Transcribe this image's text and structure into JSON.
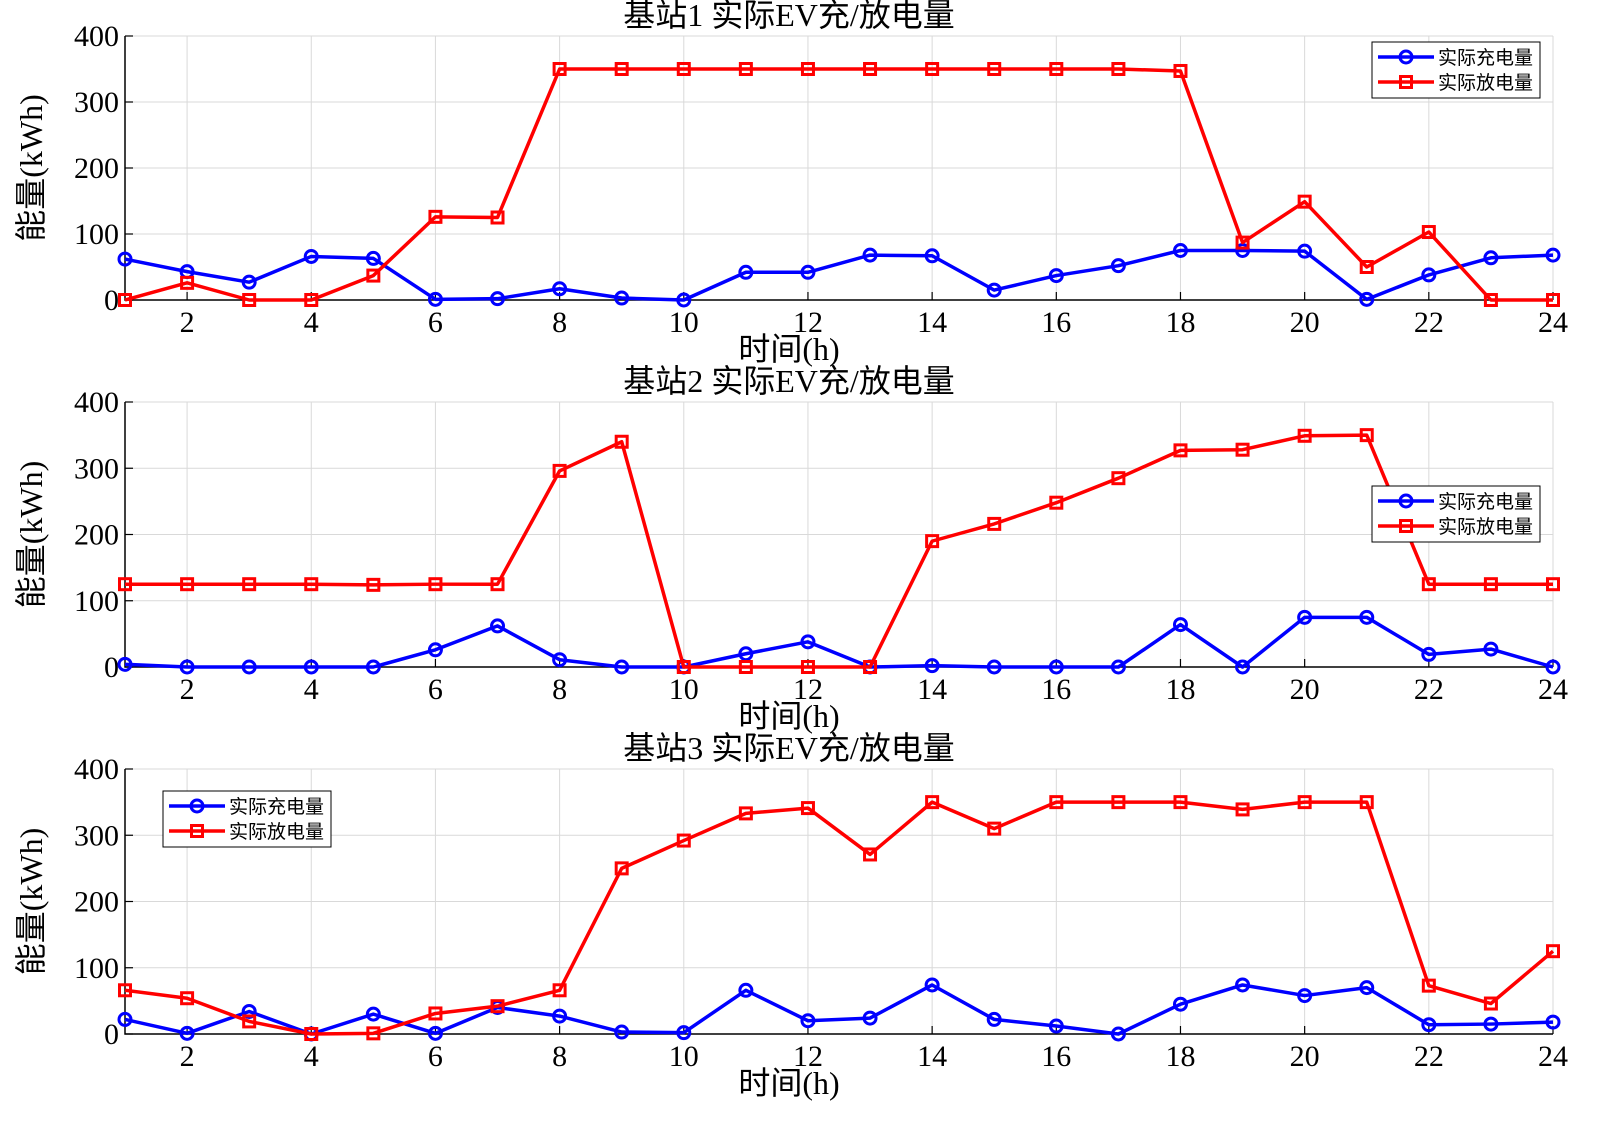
{
  "chart_data": [
    {
      "type": "line",
      "title": "基站1 实际EV充/放电量",
      "xlabel": "时间(h)",
      "ylabel": "能量(kWh)",
      "x": [
        1,
        2,
        3,
        4,
        5,
        6,
        7,
        8,
        9,
        10,
        11,
        12,
        13,
        14,
        15,
        16,
        17,
        18,
        19,
        20,
        21,
        22,
        23,
        24
      ],
      "xlim": [
        1,
        24
      ],
      "ylim": [
        0,
        400
      ],
      "xticks": [
        2,
        4,
        6,
        8,
        10,
        12,
        14,
        16,
        18,
        20,
        22,
        24
      ],
      "yticks": [
        0,
        100,
        200,
        300,
        400
      ],
      "grid": true,
      "legend_position": "top-right",
      "series": [
        {
          "name": "实际充电量",
          "color": "#0000ff",
          "marker": "circle",
          "values": [
            62,
            43,
            27,
            66,
            63,
            1,
            2,
            17,
            3,
            0,
            42,
            42,
            68,
            67,
            15,
            37,
            52,
            75,
            75,
            74,
            1,
            38,
            64,
            68
          ]
        },
        {
          "name": "实际放电量",
          "color": "#ff0000",
          "marker": "square",
          "values": [
            0,
            26,
            0,
            0,
            37,
            126,
            125,
            350,
            350,
            350,
            350,
            350,
            350,
            350,
            350,
            350,
            350,
            347,
            87,
            149,
            50,
            103,
            0,
            0
          ]
        }
      ]
    },
    {
      "type": "line",
      "title": "基站2 实际EV充/放电量",
      "xlabel": "时间(h)",
      "ylabel": "能量(kWh)",
      "x": [
        1,
        2,
        3,
        4,
        5,
        6,
        7,
        8,
        9,
        10,
        11,
        12,
        13,
        14,
        15,
        16,
        17,
        18,
        19,
        20,
        21,
        22,
        23,
        24
      ],
      "xlim": [
        1,
        24
      ],
      "ylim": [
        0,
        400
      ],
      "xticks": [
        2,
        4,
        6,
        8,
        10,
        12,
        14,
        16,
        18,
        20,
        22,
        24
      ],
      "yticks": [
        0,
        100,
        200,
        300,
        400
      ],
      "grid": true,
      "legend_position": "right",
      "series": [
        {
          "name": "实际充电量",
          "color": "#0000ff",
          "marker": "circle",
          "values": [
            4,
            0,
            0,
            0,
            0,
            26,
            62,
            11,
            0,
            0,
            20,
            38,
            0,
            2,
            0,
            0,
            0,
            64,
            0,
            75,
            75,
            19,
            27,
            0
          ]
        },
        {
          "name": "实际放电量",
          "color": "#ff0000",
          "marker": "square",
          "values": [
            125,
            125,
            125,
            125,
            124,
            125,
            125,
            296,
            340,
            0,
            0,
            0,
            0,
            190,
            216,
            248,
            285,
            327,
            328,
            349,
            350,
            125,
            125,
            125
          ]
        }
      ]
    },
    {
      "type": "line",
      "title": "基站3 实际EV充/放电量",
      "xlabel": "时间(h)",
      "ylabel": "能量(kWh)",
      "x": [
        1,
        2,
        3,
        4,
        5,
        6,
        7,
        8,
        9,
        10,
        11,
        12,
        13,
        14,
        15,
        16,
        17,
        18,
        19,
        20,
        21,
        22,
        23,
        24
      ],
      "xlim": [
        1,
        24
      ],
      "ylim": [
        0,
        400
      ],
      "xticks": [
        2,
        4,
        6,
        8,
        10,
        12,
        14,
        16,
        18,
        20,
        22,
        24
      ],
      "yticks": [
        0,
        100,
        200,
        300,
        400
      ],
      "grid": true,
      "legend_position": "top-left",
      "series": [
        {
          "name": "实际充电量",
          "color": "#0000ff",
          "marker": "circle",
          "values": [
            22,
            1,
            34,
            0,
            30,
            1,
            40,
            27,
            3,
            2,
            66,
            20,
            24,
            74,
            22,
            12,
            0,
            45,
            74,
            58,
            70,
            14,
            15,
            18
          ]
        },
        {
          "name": "实际放电量",
          "color": "#ff0000",
          "marker": "square",
          "values": [
            66,
            54,
            19,
            0,
            1,
            31,
            42,
            66,
            250,
            292,
            333,
            341,
            271,
            350,
            310,
            350,
            350,
            350,
            339,
            350,
            350,
            73,
            46,
            125
          ]
        }
      ]
    }
  ]
}
